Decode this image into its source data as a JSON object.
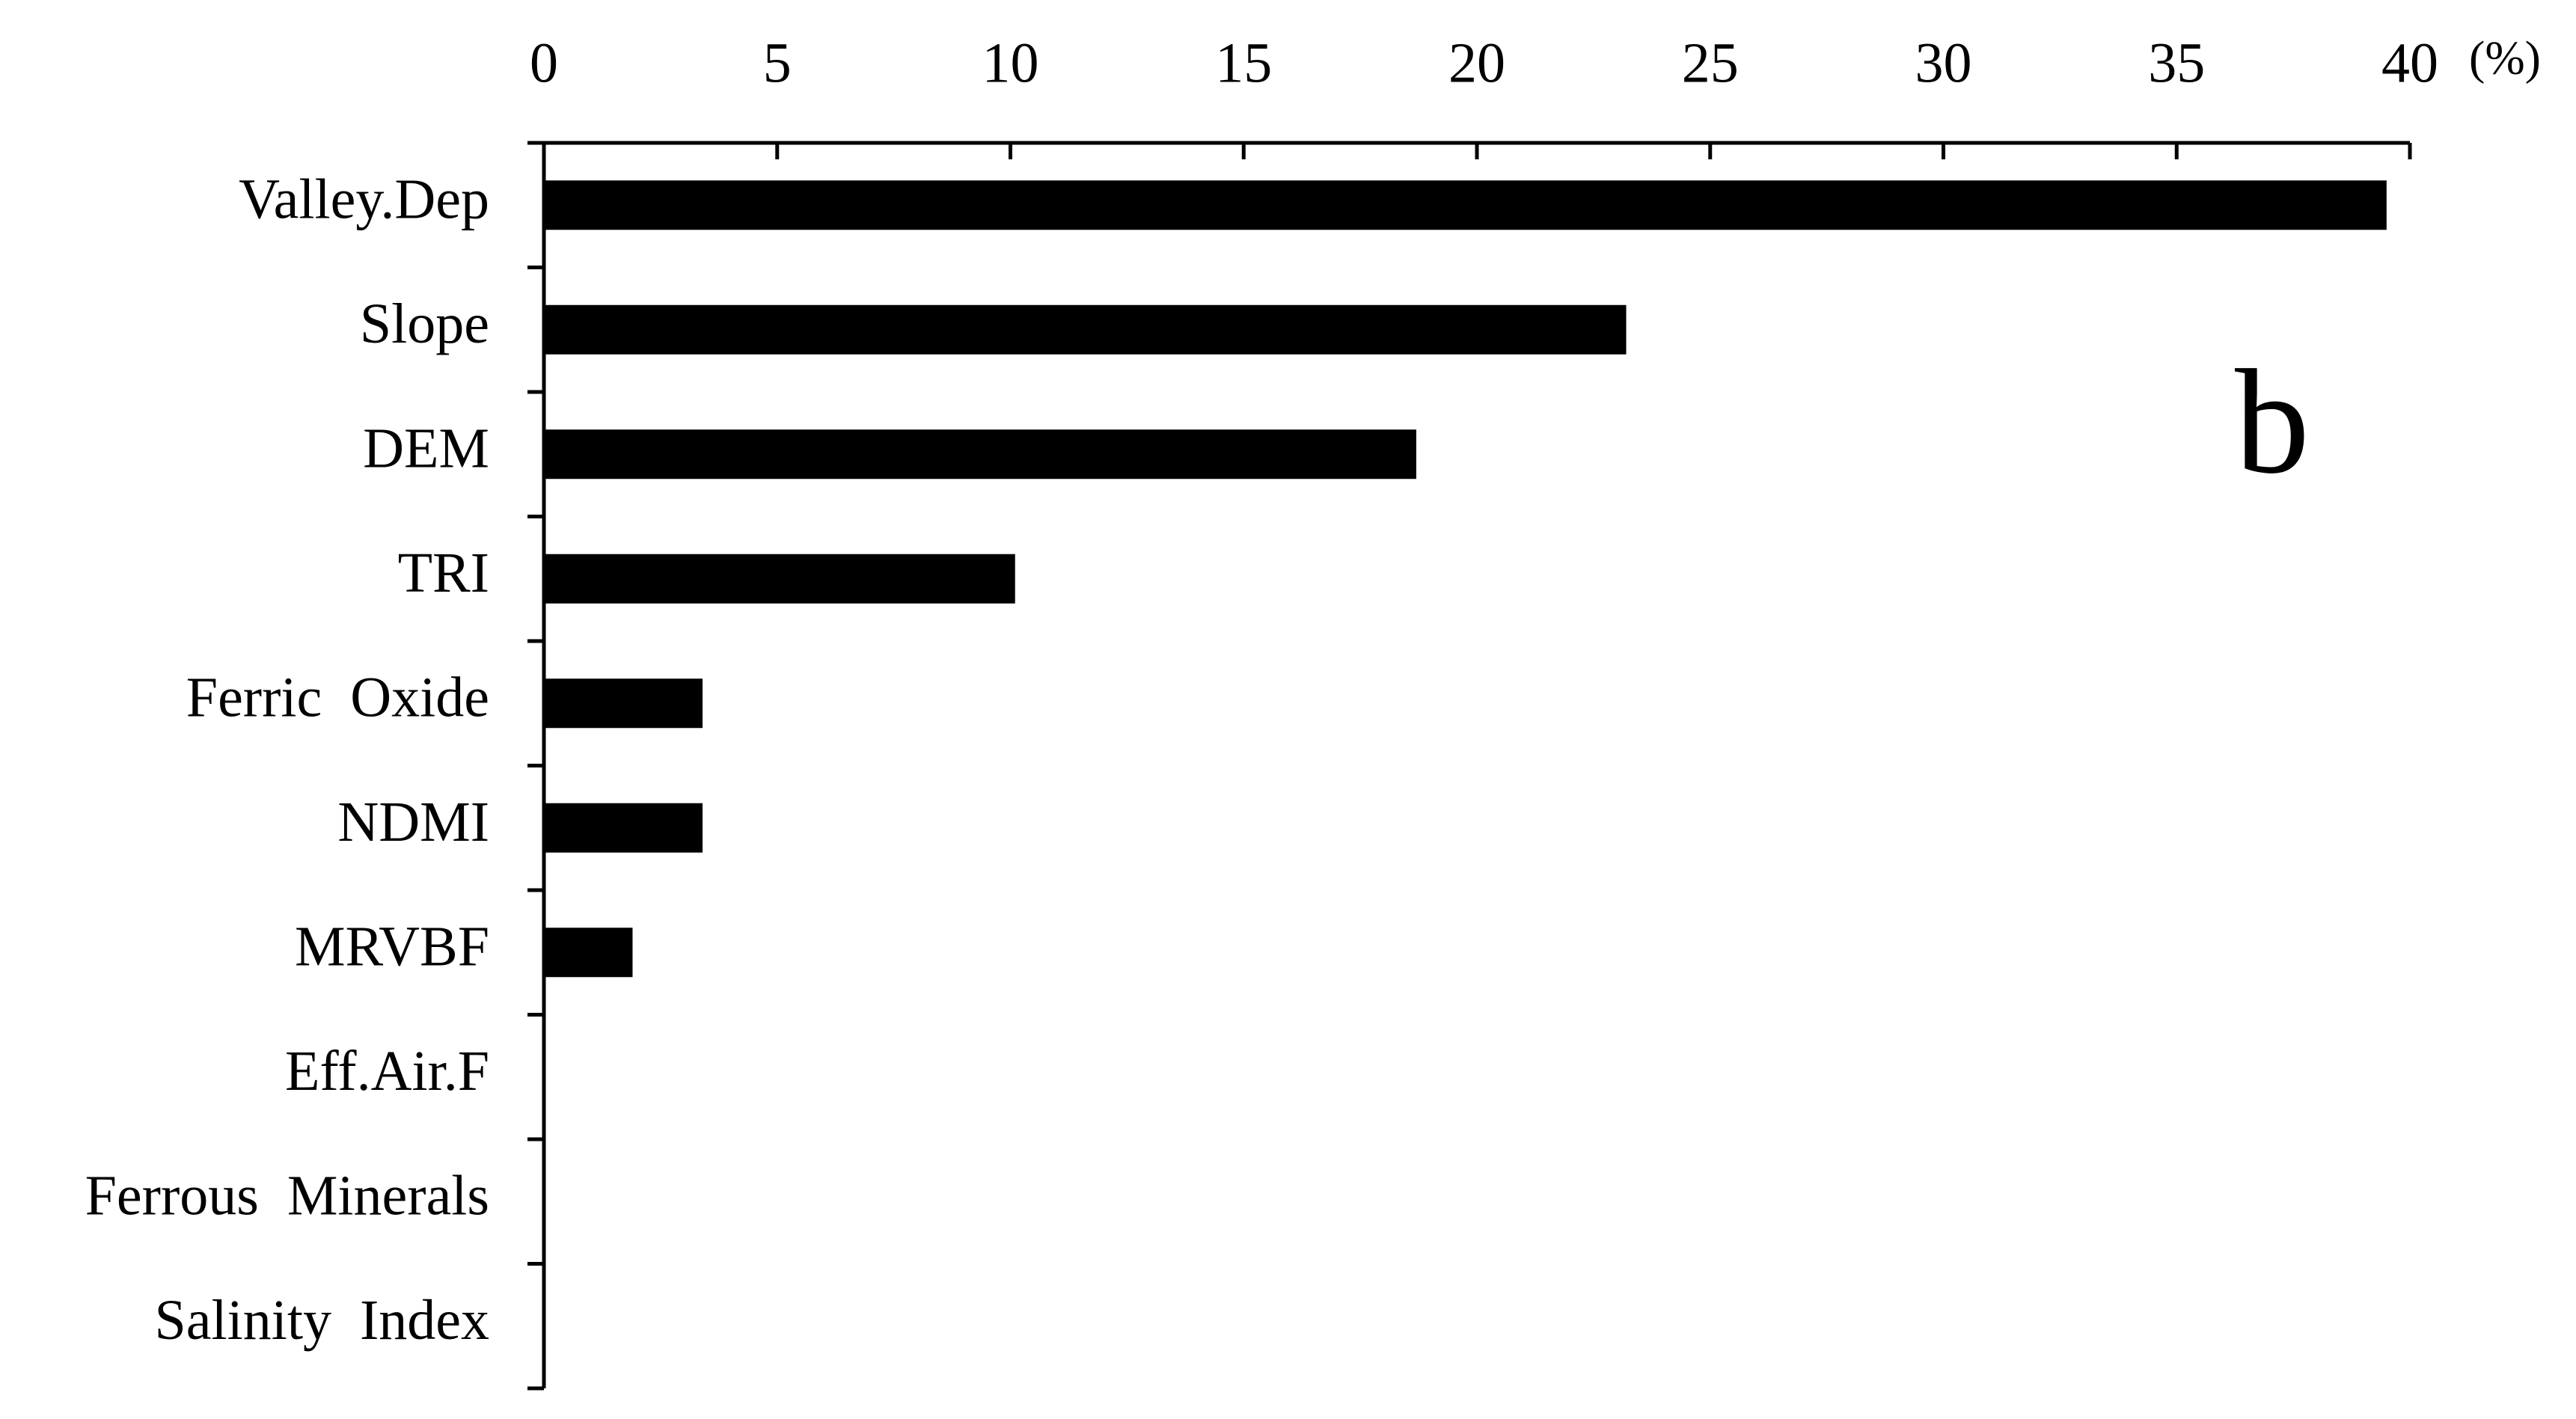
{
  "chart_data": {
    "type": "barh",
    "categories": [
      "Valley.Dep",
      "Slope",
      "DEM",
      "TRI",
      "Ferric  Oxide",
      "NDMI",
      "MRVBF",
      "Eff.Air.F",
      "Ferrous  Minerals",
      "Salinity  Index"
    ],
    "values": [
      39.5,
      23.2,
      18.7,
      10.1,
      3.4,
      3.4,
      1.9,
      0,
      0,
      0
    ],
    "color": "#000000",
    "xlim": [
      0,
      40
    ],
    "xticks": [
      0,
      5,
      10,
      15,
      20,
      25,
      30,
      35,
      40
    ],
    "xlabel": "(%)",
    "annotation": "b"
  }
}
